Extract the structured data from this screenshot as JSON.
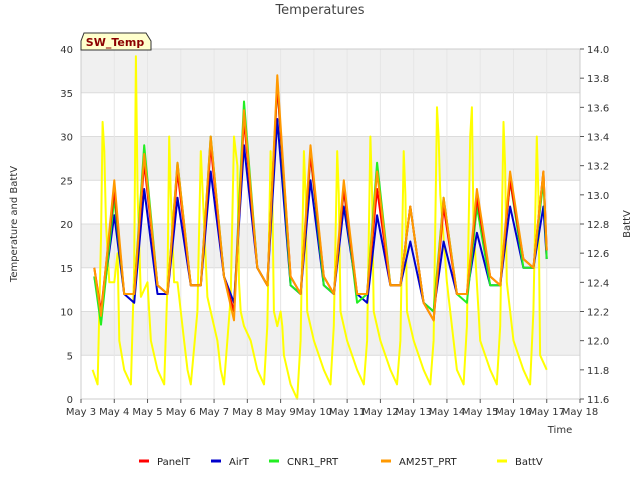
{
  "chart_data": {
    "type": "line",
    "title": "Temperatures",
    "xlabel": "Time",
    "ylabel": "Temperature and BattV",
    "y2label": "BattV",
    "badge": "SW_Temp",
    "xlim": [
      3,
      18
    ],
    "ylim": [
      0,
      40
    ],
    "y2lim": [
      11.6,
      14.0
    ],
    "x_ticks": [
      3,
      4,
      5,
      6,
      7,
      8,
      9,
      10,
      11,
      12,
      13,
      14,
      15,
      16,
      17,
      18
    ],
    "x_tick_labels": [
      "May 3",
      "May 4",
      "May 5",
      "May 6",
      "May 7",
      "May 8",
      "May 9",
      "May 10",
      "May 11",
      "May 12",
      "May 13",
      "May 14",
      "May 15",
      "May 16",
      "May 17",
      "May 18"
    ],
    "y_ticks": [
      0,
      5,
      10,
      15,
      20,
      25,
      30,
      35,
      40
    ],
    "y2_ticks": [
      11.6,
      11.8,
      12.0,
      12.2,
      12.4,
      12.6,
      12.8,
      13.0,
      13.2,
      13.4,
      13.6,
      13.8,
      14.0
    ],
    "series": [
      {
        "name": "PanelT",
        "color": "#ff0000",
        "axis": "left",
        "x": [
          3.4,
          3.6,
          4.0,
          4.3,
          4.6,
          4.9,
          5.3,
          5.6,
          5.9,
          6.3,
          6.6,
          6.9,
          7.3,
          7.6,
          7.9,
          8.3,
          8.6,
          8.9,
          9.3,
          9.6,
          9.9,
          10.3,
          10.6,
          10.9,
          11.3,
          11.6,
          11.9,
          12.3,
          12.6,
          12.9,
          13.3,
          13.6,
          13.9,
          14.3,
          14.6,
          14.9,
          15.3,
          15.6,
          15.9,
          16.3,
          16.6,
          16.9,
          17.0
        ],
        "values": [
          15,
          10,
          24,
          12,
          12,
          27,
          13,
          12,
          26,
          13,
          13,
          29,
          14,
          10,
          32,
          15,
          13,
          36,
          14,
          12,
          28,
          14,
          12,
          24,
          12,
          12,
          24,
          13,
          13,
          22,
          11,
          9,
          22,
          12,
          12,
          23,
          14,
          13,
          25,
          16,
          15,
          26,
          17
        ]
      },
      {
        "name": "AirT",
        "color": "#0000cc",
        "axis": "left",
        "x": [
          3.4,
          3.6,
          4.0,
          4.3,
          4.6,
          4.9,
          5.3,
          5.6,
          5.9,
          6.3,
          6.6,
          6.9,
          7.3,
          7.6,
          7.9,
          8.3,
          8.6,
          8.9,
          9.3,
          9.6,
          9.9,
          10.3,
          10.6,
          10.9,
          11.3,
          11.6,
          11.9,
          12.3,
          12.6,
          12.9,
          13.3,
          13.6,
          13.9,
          14.3,
          14.6,
          14.9,
          15.3,
          15.6,
          15.9,
          16.3,
          16.6,
          16.9,
          17.0
        ],
        "values": [
          14,
          10,
          21,
          12,
          11,
          24,
          12,
          12,
          23,
          13,
          13,
          26,
          14,
          11,
          29,
          15,
          13,
          32,
          13,
          12,
          25,
          13,
          12,
          22,
          12,
          11,
          21,
          13,
          13,
          18,
          11,
          10,
          18,
          12,
          12,
          19,
          13,
          13,
          22,
          15,
          15,
          22,
          16
        ]
      },
      {
        "name": "CNR1_PRT",
        "color": "#22ee22",
        "axis": "left",
        "x": [
          3.4,
          3.6,
          4.0,
          4.3,
          4.6,
          4.9,
          5.3,
          5.6,
          5.9,
          6.3,
          6.6,
          6.9,
          7.3,
          7.6,
          7.9,
          8.3,
          8.6,
          8.9,
          9.3,
          9.6,
          9.9,
          10.3,
          10.6,
          10.9,
          11.3,
          11.6,
          11.9,
          12.3,
          12.6,
          12.9,
          13.3,
          13.6,
          13.9,
          14.3,
          14.6,
          14.9,
          15.3,
          15.6,
          15.9,
          16.3,
          16.6,
          16.9,
          17.0
        ],
        "values": [
          14,
          8.5,
          23,
          12,
          12,
          29,
          13,
          12,
          27,
          13,
          13,
          30,
          14,
          10,
          34,
          15,
          13,
          36,
          13,
          12,
          28,
          13,
          12,
          24,
          11,
          12,
          27,
          13,
          13,
          22,
          11,
          10,
          23,
          12,
          11,
          22,
          13,
          13,
          25,
          15,
          15,
          25,
          16
        ]
      },
      {
        "name": "AM25T_PRT",
        "color": "#ff9900",
        "axis": "left",
        "x": [
          3.4,
          3.6,
          4.0,
          4.3,
          4.6,
          4.9,
          5.3,
          5.6,
          5.9,
          6.3,
          6.6,
          6.9,
          7.3,
          7.6,
          7.9,
          8.3,
          8.6,
          8.9,
          9.3,
          9.6,
          9.9,
          10.3,
          10.6,
          10.9,
          11.3,
          11.6,
          11.9,
          12.3,
          12.6,
          12.9,
          13.3,
          13.6,
          13.9,
          14.3,
          14.6,
          14.9,
          15.3,
          15.6,
          15.9,
          16.3,
          16.6,
          16.9,
          17.0
        ],
        "values": [
          15,
          9.5,
          25,
          12,
          12,
          28,
          13,
          12,
          27,
          13,
          13,
          30,
          14,
          9,
          33,
          15,
          13,
          37,
          14,
          12,
          29,
          14,
          12,
          25,
          12,
          12,
          26,
          13,
          13,
          22,
          11,
          9,
          23,
          12,
          12,
          24,
          14,
          13,
          26,
          16,
          15,
          26,
          17
        ]
      },
      {
        "name": "BattV",
        "color": "#ffff00",
        "axis": "right",
        "x": [
          3.35,
          3.5,
          3.6,
          3.65,
          3.7,
          3.75,
          3.85,
          4.0,
          4.1,
          4.15,
          4.3,
          4.5,
          4.6,
          4.65,
          4.7,
          4.8,
          5.0,
          5.1,
          5.3,
          5.5,
          5.6,
          5.65,
          5.7,
          5.8,
          5.9,
          6.1,
          6.2,
          6.3,
          6.5,
          6.6,
          6.7,
          6.8,
          6.9,
          7.1,
          7.2,
          7.3,
          7.5,
          7.6,
          7.7,
          7.75,
          7.8,
          7.9,
          8.1,
          8.3,
          8.5,
          8.6,
          8.7,
          8.75,
          8.8,
          8.9,
          9.0,
          9.05,
          9.1,
          9.3,
          9.5,
          9.6,
          9.7,
          9.75,
          9.8,
          10.0,
          10.3,
          10.5,
          10.6,
          10.7,
          10.75,
          10.8,
          11.0,
          11.3,
          11.5,
          11.6,
          11.7,
          11.75,
          11.8,
          12.0,
          12.3,
          12.5,
          12.6,
          12.7,
          12.75,
          12.8,
          13.0,
          13.3,
          13.5,
          13.6,
          13.7,
          13.75,
          13.8,
          14.0,
          14.3,
          14.5,
          14.6,
          14.7,
          14.75,
          14.8,
          15.0,
          15.3,
          15.5,
          15.6,
          15.7,
          15.75,
          15.8,
          16.0,
          16.3,
          16.5,
          16.6,
          16.7,
          16.75,
          16.8,
          17.0
        ],
        "values": [
          11.8,
          11.7,
          12.7,
          13.5,
          13.3,
          12.8,
          12.4,
          12.4,
          12.6,
          12.0,
          11.8,
          11.7,
          12.5,
          13.95,
          13.0,
          12.3,
          12.4,
          12.0,
          11.8,
          11.7,
          12.4,
          13.4,
          13.0,
          12.4,
          12.4,
          12.0,
          11.8,
          11.7,
          12.2,
          13.3,
          12.8,
          12.3,
          12.2,
          12.0,
          11.8,
          11.7,
          12.3,
          13.4,
          13.2,
          12.4,
          12.2,
          12.1,
          12.0,
          11.8,
          11.7,
          12.1,
          13.3,
          13.0,
          12.2,
          12.1,
          12.2,
          12.1,
          11.9,
          11.7,
          11.6,
          12.0,
          13.3,
          13.0,
          12.2,
          12.0,
          11.8,
          11.7,
          12.1,
          13.3,
          13.0,
          12.2,
          12.0,
          11.8,
          11.7,
          12.0,
          13.4,
          13.0,
          12.2,
          12.0,
          11.8,
          11.7,
          12.0,
          13.3,
          13.0,
          12.2,
          12.0,
          11.8,
          11.7,
          12.0,
          13.6,
          13.4,
          13.0,
          12.4,
          11.8,
          11.7,
          12.1,
          13.4,
          13.6,
          12.8,
          12.0,
          11.8,
          11.7,
          12.1,
          13.5,
          13.2,
          12.4,
          12.0,
          11.8,
          11.7,
          12.2,
          13.4,
          13.0,
          11.9,
          11.8
        ]
      }
    ]
  }
}
